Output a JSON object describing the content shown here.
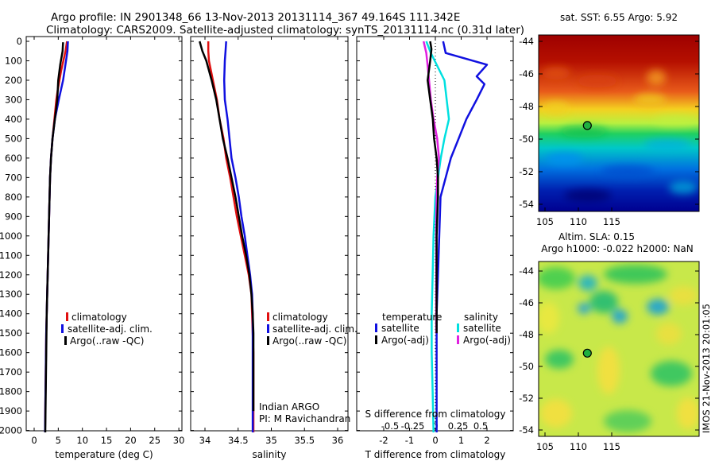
{
  "header": {
    "line1": "Argo profile: IN 2901348_66 13-Nov-2013 20131114_367 49.164S 111.342E",
    "line2": "Climatology: CARS2009. Satellite-adjusted climatology: synTS_20131114.nc (0.31d later)"
  },
  "depth_ticks": [
    "0",
    "100",
    "200",
    "300",
    "400",
    "500",
    "600",
    "700",
    "800",
    "900",
    "1000",
    "1100",
    "1200",
    "1300",
    "1400",
    "1500",
    "1600",
    "1700",
    "1800",
    "1900",
    "2000"
  ],
  "colors": {
    "climatology": "#e01010",
    "satellite": "#1010e0",
    "argo": "#000000",
    "satellite_salinity": "#00e0e0",
    "argo_adj_salinity": "#e020e0"
  },
  "panels": {
    "temperature": {
      "xlabel": "temperature (deg C)",
      "ticks": [
        "0",
        "5",
        "10",
        "15",
        "20",
        "25",
        "30"
      ],
      "legend": [
        "climatology",
        "satellite-adj. clim.",
        "Argo(..raw -QC)"
      ]
    },
    "salinity": {
      "xlabel": "salinity",
      "ticks": [
        "34",
        "34.5",
        "35",
        "35.5",
        "36"
      ],
      "legend": [
        "climatology",
        "satellite-adj. clim.",
        "Argo(..raw -QC)"
      ],
      "note1": "Indian ARGO",
      "note2": "PI: M Ravichandran"
    },
    "difference": {
      "xlabel": "T difference from climatology",
      "toplabel": "S difference from climatology",
      "t_ticks": [
        "-2",
        "-1",
        "0",
        "1",
        "2"
      ],
      "s_ticks": [
        "-0.5",
        "-0.25",
        "0",
        "0.25",
        "0.5"
      ],
      "legend_head_t": "temperature",
      "legend_head_s": "salinity",
      "legend_t": [
        "satellite",
        "Argo(-adj)"
      ],
      "legend_s": [
        "satellite",
        "Argo(-adj)"
      ]
    }
  },
  "maps": {
    "sst_title": "sat. SST: 6.55 Argo: 5.92",
    "sla_title1": "Altim. SLA: 0.15",
    "sla_title2": "Argo h1000: -0.022 h2000: NaN",
    "lat_ticks": [
      "-44",
      "-46",
      "-48",
      "-50",
      "-52",
      "-54"
    ],
    "lon_ticks": [
      "105",
      "110",
      "115"
    ],
    "float_position": {
      "lon": 111.342,
      "lat": -49.164
    },
    "footer": "IMOS 21-Nov-2013 20:01:05"
  },
  "chart_data": [
    {
      "type": "line",
      "title": "",
      "xlabel": "temperature (deg C)",
      "ylabel": "",
      "xlim": [
        -1,
        31
      ],
      "ylim": [
        2050,
        0
      ],
      "grid": false,
      "legend_position": "lower-left",
      "series": [
        {
          "name": "climatology",
          "x": [
            6.8,
            6.5,
            5.6,
            4.9,
            4.6,
            4.2,
            3.8,
            3.5,
            3.3,
            3.2,
            3.1,
            3.0,
            2.9,
            2.8,
            2.7,
            2.6,
            2.5,
            2.45,
            2.4,
            2.35,
            2.3,
            2.25
          ],
          "y": [
            0,
            50,
            150,
            250,
            300,
            400,
            500,
            600,
            700,
            800,
            900,
            1000,
            1100,
            1200,
            1300,
            1400,
            1500,
            1600,
            1700,
            1800,
            1900,
            2010
          ]
        },
        {
          "name": "satellite-adj. clim.",
          "x": [
            7.0,
            6.9,
            6.6,
            6.0,
            5.1,
            4.3,
            3.8,
            3.5,
            3.3,
            3.2,
            3.1,
            3.0,
            2.9,
            2.8,
            2.7,
            2.6,
            2.5,
            2.45,
            2.4,
            2.35,
            2.3,
            2.25
          ],
          "y": [
            0,
            50,
            100,
            200,
            300,
            400,
            500,
            600,
            700,
            800,
            900,
            1000,
            1100,
            1200,
            1300,
            1400,
            1500,
            1600,
            1700,
            1800,
            1900,
            2010
          ]
        },
        {
          "name": "Argo(..raw -QC)",
          "x": [
            6.0,
            5.9,
            5.4,
            5.0,
            4.8,
            4.3,
            3.8,
            3.5,
            3.3,
            3.2,
            3.1,
            3.0,
            2.9,
            2.8,
            2.7,
            2.6,
            2.55,
            2.5,
            2.45,
            2.4,
            2.35,
            2.3
          ],
          "y": [
            5,
            50,
            120,
            200,
            300,
            400,
            500,
            600,
            700,
            800,
            900,
            1000,
            1100,
            1200,
            1300,
            1400,
            1500,
            1600,
            1700,
            1800,
            1900,
            2010
          ]
        }
      ]
    },
    {
      "type": "line",
      "title": "",
      "xlabel": "salinity",
      "ylabel": "",
      "xlim": [
        33.8,
        36.1
      ],
      "ylim": [
        2050,
        0
      ],
      "grid": false,
      "legend_position": "lower-left",
      "series": [
        {
          "name": "climatology",
          "x": [
            34.05,
            34.05,
            34.06,
            34.12,
            34.18,
            34.22,
            34.28,
            34.32,
            34.38,
            34.43,
            34.48,
            34.54,
            34.6,
            34.66,
            34.7,
            34.71,
            34.72,
            34.73,
            34.73,
            34.73,
            34.73
          ],
          "y": [
            0,
            50,
            100,
            200,
            300,
            400,
            500,
            600,
            700,
            800,
            900,
            1000,
            1100,
            1200,
            1300,
            1400,
            1500,
            1600,
            1700,
            1800,
            2010
          ]
        },
        {
          "name": "satellite-adj. clim.",
          "x": [
            34.32,
            34.31,
            34.3,
            34.29,
            34.3,
            34.34,
            34.37,
            34.4,
            34.46,
            34.51,
            34.55,
            34.6,
            34.64,
            34.68,
            34.71,
            34.72,
            34.72,
            34.72,
            34.72,
            34.72,
            34.72
          ],
          "y": [
            0,
            50,
            100,
            200,
            300,
            400,
            500,
            600,
            700,
            800,
            900,
            1000,
            1100,
            1200,
            1300,
            1400,
            1500,
            1600,
            1700,
            1800,
            2010
          ]
        },
        {
          "name": "Argo(..raw -QC)",
          "x": [
            33.92,
            33.96,
            34.02,
            34.1,
            34.17,
            34.22,
            34.27,
            34.34,
            34.4,
            34.46,
            34.51,
            34.56,
            34.62,
            34.67,
            34.7,
            34.72,
            34.73,
            34.73,
            34.73,
            34.73
          ],
          "y": [
            0,
            50,
            100,
            200,
            300,
            400,
            500,
            600,
            700,
            800,
            900,
            1000,
            1100,
            1200,
            1300,
            1400,
            1500,
            1600,
            1700,
            1900
          ]
        }
      ]
    },
    {
      "type": "line",
      "title": "",
      "xlabel": "T difference from climatology",
      "ylabel": "",
      "xlim": [
        -2.6,
        2.9
      ],
      "ylim": [
        2050,
        0
      ],
      "grid": false,
      "legend_position": "lower-center",
      "series": [
        {
          "name": "temperature satellite",
          "units": "deg C",
          "x": [
            0.3,
            0.4,
            2.0,
            1.6,
            1.9,
            1.6,
            1.2,
            0.9,
            0.6,
            0.4,
            0.2,
            0.15,
            0.1,
            0.05,
            0.05,
            0.05,
            0.05,
            0.05,
            0.05,
            0.05
          ],
          "y": [
            0,
            60,
            120,
            180,
            220,
            300,
            400,
            500,
            600,
            700,
            800,
            1000,
            1200,
            1400,
            1500,
            1600,
            1700,
            1800,
            1900,
            2010
          ]
        },
        {
          "name": "temperature Argo(-adj)",
          "units": "deg C",
          "x": [
            -0.2,
            -0.15,
            -0.2,
            -0.3,
            -0.2,
            -0.1,
            -0.05,
            0.05,
            0.1,
            0.1,
            0.05,
            0.05,
            0.05,
            0.05
          ],
          "y": [
            0,
            40,
            100,
            200,
            300,
            400,
            500,
            600,
            700,
            800,
            1000,
            1200,
            1400,
            1500
          ]
        },
        {
          "name": "salinity satellite",
          "units": "PSU",
          "x": [
            -0.1,
            -0.05,
            0.1,
            0.15,
            0.1,
            0.06,
            0.03,
            0.0,
            -0.02,
            -0.03,
            -0.04,
            -0.04,
            -0.03,
            -0.02
          ],
          "y": [
            0,
            60,
            200,
            400,
            500,
            600,
            700,
            800,
            1000,
            1200,
            1400,
            1600,
            1800,
            2010
          ]
        },
        {
          "name": "salinity Argo(-adj)",
          "units": "PSU",
          "x": [
            -0.13,
            -0.1,
            -0.08,
            -0.05,
            -0.02,
            0.02,
            0.04,
            0.02,
            0.01,
            0.01,
            0.01,
            0.01
          ],
          "y": [
            0,
            60,
            150,
            300,
            400,
            500,
            600,
            700,
            900,
            1100,
            1300,
            1500
          ]
        }
      ]
    }
  ]
}
